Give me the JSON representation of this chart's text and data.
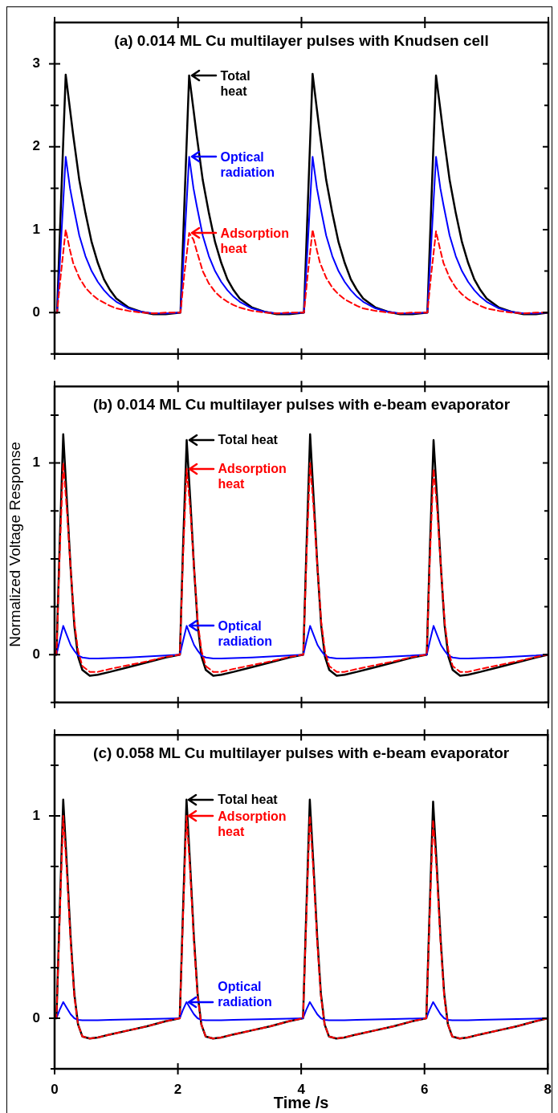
{
  "chart_data": [
    {
      "type": "line",
      "title": "(a) 0.014 ML Cu multilayer pulses with Knudsen cell",
      "tick_labels": "y",
      "x": [
        0,
        0.04,
        0.1,
        0.18,
        0.25,
        0.3,
        0.4,
        0.5,
        0.6,
        0.7,
        0.8,
        0.9,
        1.0,
        1.2,
        1.4,
        1.6,
        1.8,
        2.04,
        2.1,
        2.18,
        2.25,
        2.3,
        2.4,
        2.5,
        2.6,
        2.7,
        2.8,
        2.9,
        3.0,
        3.2,
        3.4,
        3.6,
        3.8,
        4.04,
        4.1,
        4.18,
        4.25,
        4.3,
        4.4,
        4.5,
        4.6,
        4.7,
        4.8,
        4.9,
        5.0,
        5.2,
        5.4,
        5.6,
        5.8,
        6.04,
        6.1,
        6.18,
        6.25,
        6.3,
        6.4,
        6.5,
        6.6,
        6.7,
        6.8,
        6.9,
        7.0,
        7.2,
        7.4,
        7.6,
        7.8,
        8
      ],
      "series": [
        {
          "color": "#000000",
          "values": [
            0,
            0,
            1.25,
            2.87,
            2.45,
            2.15,
            1.6,
            1.2,
            0.85,
            0.6,
            0.4,
            0.27,
            0.17,
            0.06,
            0.01,
            -0.02,
            -0.02,
            0,
            1.25,
            2.86,
            2.45,
            2.15,
            1.6,
            1.2,
            0.85,
            0.6,
            0.4,
            0.27,
            0.17,
            0.06,
            0.01,
            -0.02,
            -0.02,
            0,
            1.25,
            2.88,
            2.45,
            2.15,
            1.6,
            1.2,
            0.85,
            0.6,
            0.4,
            0.27,
            0.17,
            0.06,
            0.01,
            -0.02,
            -0.02,
            0,
            1.25,
            2.86,
            2.45,
            2.15,
            1.6,
            1.2,
            0.85,
            0.6,
            0.4,
            0.27,
            0.17,
            0.06,
            0.01,
            -0.02,
            -0.02,
            0
          ]
        },
        {
          "color": "#0000ff",
          "values": [
            0,
            0,
            0.8,
            1.88,
            1.5,
            1.3,
            0.93,
            0.68,
            0.5,
            0.37,
            0.27,
            0.19,
            0.13,
            0.05,
            0.01,
            -0.01,
            -0.01,
            0,
            0.8,
            1.88,
            1.5,
            1.3,
            0.93,
            0.68,
            0.5,
            0.37,
            0.27,
            0.19,
            0.13,
            0.05,
            0.01,
            -0.01,
            -0.01,
            0,
            0.8,
            1.88,
            1.5,
            1.3,
            0.93,
            0.68,
            0.5,
            0.37,
            0.27,
            0.19,
            0.13,
            0.05,
            0.01,
            -0.01,
            -0.01,
            0,
            0.8,
            1.88,
            1.5,
            1.3,
            0.93,
            0.68,
            0.5,
            0.37,
            0.27,
            0.19,
            0.13,
            0.05,
            0.01,
            -0.01,
            -0.01,
            0
          ]
        },
        {
          "color": "#ff0000",
          "line_style": "dashed",
          "values": [
            0,
            0,
            0.45,
            1.0,
            0.75,
            0.6,
            0.42,
            0.3,
            0.22,
            0.16,
            0.12,
            0.08,
            0.05,
            0.02,
            0,
            -0.01,
            0,
            0,
            0.45,
            0.96,
            0.88,
            0.75,
            0.5,
            0.35,
            0.25,
            0.18,
            0.13,
            0.09,
            0.06,
            0.02,
            0,
            -0.01,
            0,
            0,
            0.45,
            1.0,
            0.75,
            0.6,
            0.42,
            0.3,
            0.22,
            0.16,
            0.12,
            0.08,
            0.05,
            0.02,
            0,
            -0.01,
            0,
            0,
            0.45,
            0.98,
            0.75,
            0.6,
            0.42,
            0.3,
            0.22,
            0.16,
            0.12,
            0.08,
            0.05,
            0.02,
            0,
            -0.01,
            0,
            0
          ]
        }
      ],
      "xlim": [
        0,
        8
      ],
      "xticks": [
        0,
        2,
        4,
        6,
        8
      ],
      "ylim": [
        -0.5,
        3.5
      ],
      "yticks": [
        {
          "value": -0.5,
          "label": null
        },
        0,
        {
          "value": 0.5,
          "label": null
        },
        1,
        {
          "value": 1.5,
          "label": null
        },
        2,
        {
          "value": 2.5,
          "label": null
        },
        3
      ],
      "annotations": [
        "Total\nheat",
        "Optical\nradiation",
        "Adsorption\nheat"
      ]
    },
    {
      "type": "line",
      "title": "(b) 0.014 ML Cu multilayer pulses with e-beam evaporator",
      "ylabel": "Normalized Voltage Response",
      "tick_labels": "y",
      "x": [
        0,
        0.03,
        0.08,
        0.14,
        0.2,
        0.26,
        0.32,
        0.38,
        0.45,
        0.57,
        0.7,
        0.9,
        1.2,
        1.5,
        1.8,
        2.03,
        2.08,
        2.14,
        2.2,
        2.26,
        2.32,
        2.38,
        2.45,
        2.57,
        2.7,
        2.9,
        3.2,
        3.5,
        3.8,
        4.03,
        4.08,
        4.14,
        4.2,
        4.26,
        4.32,
        4.38,
        4.45,
        4.57,
        4.7,
        4.9,
        5.2,
        5.5,
        5.8,
        6.03,
        6.08,
        6.14,
        6.2,
        6.26,
        6.32,
        6.38,
        6.45,
        6.57,
        6.7,
        6.9,
        7.2,
        7.5,
        7.8,
        8
      ],
      "series": [
        {
          "color": "#000000",
          "values": [
            0,
            0,
            0.55,
            1.15,
            0.8,
            0.45,
            0.15,
            -0.01,
            -0.08,
            -0.11,
            -0.105,
            -0.09,
            -0.065,
            -0.04,
            -0.015,
            0,
            0.55,
            1.12,
            0.8,
            0.45,
            0.15,
            -0.01,
            -0.08,
            -0.11,
            -0.105,
            -0.09,
            -0.065,
            -0.04,
            -0.015,
            0,
            0.55,
            1.15,
            0.8,
            0.45,
            0.15,
            -0.01,
            -0.08,
            -0.11,
            -0.105,
            -0.09,
            -0.065,
            -0.04,
            -0.015,
            0,
            0.55,
            1.12,
            0.8,
            0.45,
            0.15,
            -0.01,
            -0.08,
            -0.11,
            -0.105,
            -0.09,
            -0.065,
            -0.04,
            -0.015,
            0
          ]
        },
        {
          "color": "#0000ff",
          "values": [
            0,
            0,
            0.07,
            0.15,
            0.1,
            0.05,
            0.02,
            -0.005,
            -0.015,
            -0.02,
            -0.02,
            -0.018,
            -0.015,
            -0.01,
            -0.005,
            0,
            0.07,
            0.15,
            0.1,
            0.05,
            0.02,
            -0.005,
            -0.015,
            -0.02,
            -0.02,
            -0.018,
            -0.015,
            -0.01,
            -0.005,
            0,
            0.07,
            0.15,
            0.1,
            0.05,
            0.02,
            -0.005,
            -0.015,
            -0.02,
            -0.02,
            -0.018,
            -0.015,
            -0.01,
            -0.005,
            0,
            0.07,
            0.15,
            0.1,
            0.05,
            0.02,
            -0.005,
            -0.015,
            -0.02,
            -0.02,
            -0.018,
            -0.015,
            -0.01,
            -0.005,
            0
          ]
        },
        {
          "color": "#ff0000",
          "line_style": "dashed",
          "values": [
            0,
            0,
            0.5,
            1.0,
            0.75,
            0.45,
            0.17,
            0.02,
            -0.06,
            -0.09,
            -0.09,
            -0.075,
            -0.055,
            -0.035,
            -0.012,
            0,
            0.5,
            0.97,
            0.75,
            0.45,
            0.17,
            0.02,
            -0.06,
            -0.09,
            -0.09,
            -0.075,
            -0.055,
            -0.035,
            -0.012,
            0,
            0.5,
            1.0,
            0.75,
            0.45,
            0.17,
            0.02,
            -0.06,
            -0.09,
            -0.09,
            -0.075,
            -0.055,
            -0.035,
            -0.012,
            0,
            0.5,
            0.97,
            0.75,
            0.45,
            0.17,
            0.02,
            -0.06,
            -0.09,
            -0.09,
            -0.075,
            -0.055,
            -0.035,
            -0.012,
            0
          ]
        }
      ],
      "xlim": [
        0,
        8
      ],
      "xticks": [
        0,
        2,
        4,
        6,
        8
      ],
      "ylim": [
        -0.25,
        1.4
      ],
      "yticks": [
        {
          "value": -0.25,
          "label": null
        },
        0,
        {
          "value": 0.25,
          "label": null
        },
        {
          "value": 0.5,
          "label": null
        },
        {
          "value": 0.75,
          "label": null
        },
        1,
        {
          "value": 1.25,
          "label": null
        }
      ],
      "annotations": [
        "Total heat",
        "Optical\nradiation",
        "Adsorption\nheat"
      ]
    },
    {
      "type": "line",
      "title": "(c) 0.058 ML Cu multilayer pulses with e-beam evaporator",
      "xlabel": "Time /s",
      "x": [
        0,
        0.03,
        0.08,
        0.14,
        0.2,
        0.26,
        0.32,
        0.38,
        0.45,
        0.57,
        0.7,
        0.9,
        1.2,
        1.5,
        1.8,
        2.03,
        2.08,
        2.14,
        2.2,
        2.26,
        2.32,
        2.38,
        2.45,
        2.57,
        2.7,
        2.9,
        3.2,
        3.5,
        3.8,
        4.03,
        4.08,
        4.14,
        4.2,
        4.26,
        4.32,
        4.38,
        4.45,
        4.57,
        4.7,
        4.9,
        5.2,
        5.5,
        5.8,
        6.03,
        6.08,
        6.14,
        6.2,
        6.26,
        6.32,
        6.38,
        6.45,
        6.57,
        6.7,
        6.9,
        7.2,
        7.5,
        7.8,
        8
      ],
      "series": [
        {
          "color": "#000000",
          "values": [
            0,
            0,
            0.5,
            1.08,
            0.75,
            0.4,
            0.12,
            -0.03,
            -0.09,
            -0.1,
            -0.095,
            -0.08,
            -0.06,
            -0.04,
            -0.015,
            0,
            0.5,
            1.08,
            0.75,
            0.4,
            0.12,
            -0.03,
            -0.09,
            -0.1,
            -0.095,
            -0.08,
            -0.06,
            -0.04,
            -0.015,
            0,
            0.5,
            1.08,
            0.75,
            0.4,
            0.12,
            -0.03,
            -0.09,
            -0.1,
            -0.095,
            -0.08,
            -0.06,
            -0.04,
            -0.015,
            0,
            0.5,
            1.07,
            0.75,
            0.4,
            0.12,
            -0.03,
            -0.09,
            -0.1,
            -0.095,
            -0.08,
            -0.06,
            -0.04,
            -0.015,
            0
          ]
        },
        {
          "color": "#0000ff",
          "values": [
            0,
            0,
            0.04,
            0.08,
            0.05,
            0.02,
            0,
            -0.008,
            -0.01,
            -0.01,
            -0.01,
            -0.008,
            -0.006,
            -0.004,
            -0.002,
            0,
            0.04,
            0.08,
            0.05,
            0.02,
            0,
            -0.008,
            -0.01,
            -0.01,
            -0.01,
            -0.008,
            -0.006,
            -0.004,
            -0.002,
            0,
            0.04,
            0.08,
            0.05,
            0.02,
            0,
            -0.008,
            -0.01,
            -0.01,
            -0.01,
            -0.008,
            -0.006,
            -0.004,
            -0.002,
            0,
            0.04,
            0.08,
            0.05,
            0.02,
            0,
            -0.008,
            -0.01,
            -0.01,
            -0.01,
            -0.008,
            -0.006,
            -0.004,
            -0.002,
            0
          ]
        },
        {
          "color": "#ff0000",
          "line_style": "dashed",
          "values": [
            0,
            0,
            0.47,
            1.0,
            0.72,
            0.38,
            0.11,
            -0.03,
            -0.09,
            -0.1,
            -0.095,
            -0.08,
            -0.06,
            -0.04,
            -0.015,
            0,
            0.47,
            1.0,
            0.72,
            0.38,
            0.11,
            -0.03,
            -0.09,
            -0.1,
            -0.095,
            -0.08,
            -0.06,
            -0.04,
            -0.015,
            0,
            0.47,
            1.0,
            0.72,
            0.38,
            0.11,
            -0.03,
            -0.09,
            -0.1,
            -0.095,
            -0.08,
            -0.06,
            -0.04,
            -0.015,
            0,
            0.47,
            0.98,
            0.72,
            0.38,
            0.11,
            -0.03,
            -0.09,
            -0.1,
            -0.095,
            -0.08,
            -0.06,
            -0.04,
            -0.015,
            0
          ]
        }
      ],
      "xlim": [
        0,
        8
      ],
      "xticks": [
        0,
        2,
        4,
        6,
        8
      ],
      "ylim": [
        -0.25,
        1.4
      ],
      "yticks": [
        {
          "value": -0.25,
          "label": null
        },
        0,
        {
          "value": 0.25,
          "label": null
        },
        {
          "value": 0.5,
          "label": null
        },
        {
          "value": 0.75,
          "label": null
        },
        1,
        {
          "value": 1.25,
          "label": null
        }
      ],
      "annotations": [
        "Total heat",
        "Optical\nradiation",
        "Adsorption\nheat"
      ]
    }
  ]
}
